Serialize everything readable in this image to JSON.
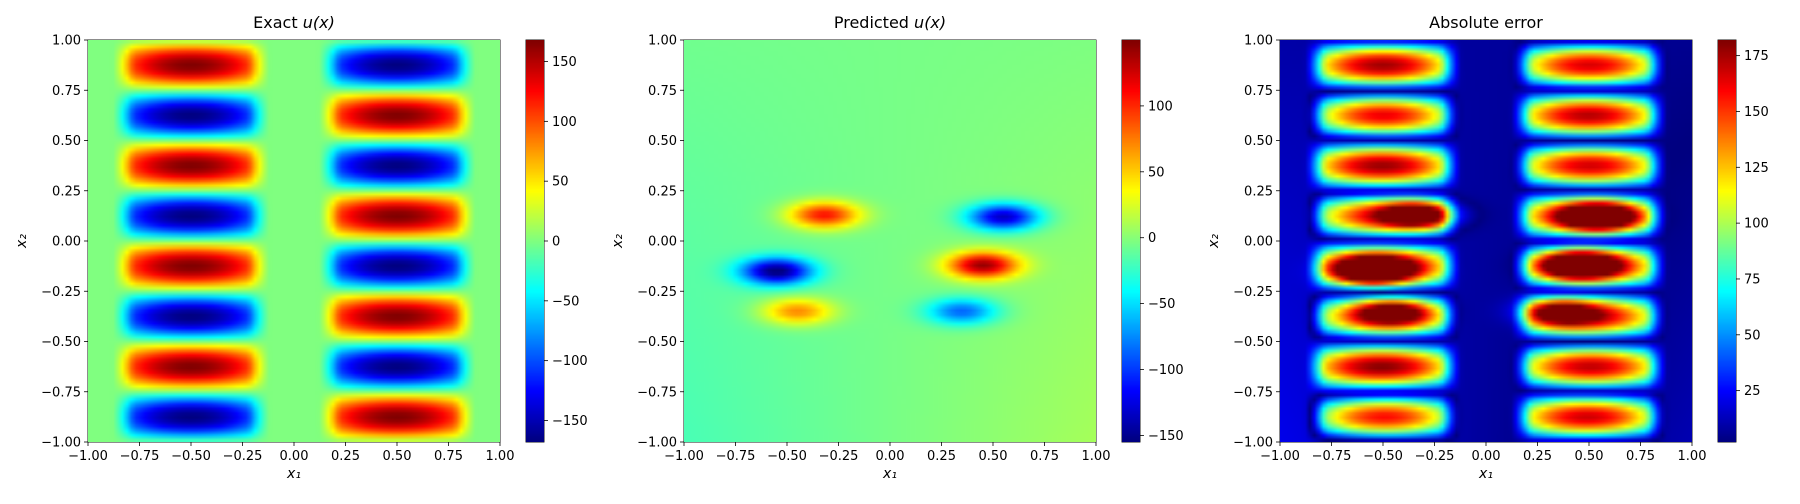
{
  "chart_data": [
    {
      "type": "heatmap",
      "title_prefix": "Exact ",
      "title_math": "u(x)",
      "xlabel": "x₁",
      "ylabel": "x₂",
      "xlim": [
        -1.0,
        1.0
      ],
      "ylim": [
        -1.0,
        1.0
      ],
      "xticks": [
        "−1.00",
        "−0.75",
        "−0.50",
        "−0.25",
        "0.00",
        "0.25",
        "0.50",
        "0.75",
        "1.00"
      ],
      "yticks": [
        "−1.00",
        "−0.75",
        "−0.50",
        "−0.25",
        "0.00",
        "0.25",
        "0.50",
        "0.75",
        "1.00"
      ],
      "colormap": "jet",
      "colorbar": {
        "min": -168,
        "max": 168,
        "ticks": [
          "150",
          "100",
          "50",
          "0",
          "−50",
          "−100",
          "−150"
        ],
        "tick_values": [
          150,
          100,
          50,
          0,
          -50,
          -100,
          -150
        ]
      },
      "field": "168 * sin(pi*x1) * sin(4*pi*x2), masked to 0 for |x1|<0.12 and |x1|>0.88",
      "grid": false
    },
    {
      "type": "heatmap",
      "title_prefix": "Predicted ",
      "title_math": "u(x)",
      "xlabel": "x₁",
      "ylabel": "x₂",
      "xlim": [
        -1.0,
        1.0
      ],
      "ylim": [
        -1.0,
        1.0
      ],
      "xticks": [
        "−1.00",
        "−0.75",
        "−0.50",
        "−0.25",
        "0.00",
        "0.25",
        "0.50",
        "0.75",
        "1.00"
      ],
      "yticks": [
        "−1.00",
        "−0.75",
        "−0.50",
        "−0.25",
        "0.00",
        "0.25",
        "0.50",
        "0.75",
        "1.00"
      ],
      "colormap": "jet",
      "colorbar": {
        "min": -155,
        "max": 150,
        "ticks": [
          "100",
          "50",
          "0",
          "−50",
          "−100",
          "−150"
        ],
        "tick_values": [
          100,
          50,
          0,
          -50,
          -100,
          -150
        ]
      },
      "blobs": [
        {
          "x": -0.32,
          "y": 0.13,
          "value": 115
        },
        {
          "x": -0.55,
          "y": -0.15,
          "value": -150
        },
        {
          "x": -0.45,
          "y": -0.35,
          "value": 80
        },
        {
          "x": 0.55,
          "y": 0.12,
          "value": -135
        },
        {
          "x": 0.45,
          "y": -0.12,
          "value": 145
        },
        {
          "x": 0.35,
          "y": -0.35,
          "value": -85
        }
      ],
      "grid": false
    },
    {
      "type": "heatmap",
      "title_prefix": "Absolute error",
      "title_math": "",
      "xlabel": "x₁",
      "ylabel": "x₂",
      "xlim": [
        -1.0,
        1.0
      ],
      "ylim": [
        -1.0,
        1.0
      ],
      "xticks": [
        "−1.00",
        "−0.75",
        "−0.50",
        "−0.25",
        "0.00",
        "0.25",
        "0.50",
        "0.75",
        "1.00"
      ],
      "yticks": [
        "−1.00",
        "−0.75",
        "−0.50",
        "−0.25",
        "0.00",
        "0.25",
        "0.50",
        "0.75",
        "1.00"
      ],
      "colormap": "jet",
      "colorbar": {
        "min": 2,
        "max": 182,
        "ticks": [
          "175",
          "150",
          "125",
          "100",
          "75",
          "50",
          "25"
        ],
        "tick_values": [
          175,
          150,
          125,
          100,
          75,
          50,
          25
        ]
      },
      "field": "|exact - predicted|",
      "grid": false
    }
  ]
}
